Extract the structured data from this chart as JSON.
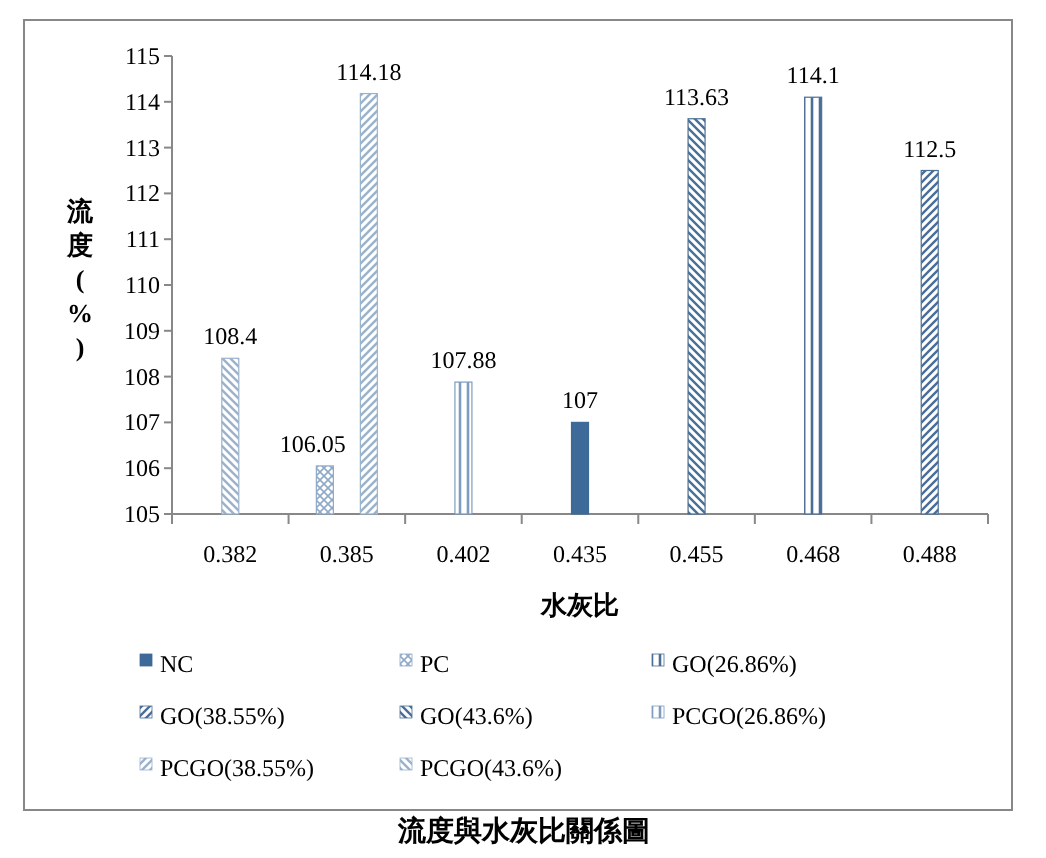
{
  "chart_data": {
    "type": "bar",
    "title": "流度與水灰比關係圖",
    "xlabel": "水灰比",
    "ylabel": "流度(%)",
    "categories": [
      "0.382",
      "0.385",
      "0.402",
      "0.435",
      "0.455",
      "0.468",
      "0.488"
    ],
    "ylim": [
      105,
      115
    ],
    "yticks": [
      105,
      106,
      107,
      108,
      109,
      110,
      111,
      112,
      113,
      114,
      115
    ],
    "data_labels": true,
    "legend": "bottom",
    "grid": false,
    "series": [
      {
        "name": "NC",
        "color": "#3e6a99",
        "values": [
          null,
          null,
          null,
          107,
          null,
          null,
          null
        ]
      },
      {
        "name": "PC",
        "color": "#8ea9c8",
        "values": [
          null,
          106.05,
          null,
          null,
          null,
          null,
          null
        ]
      },
      {
        "name": "GO(26.86%)",
        "color": "#4a6f96",
        "values": [
          null,
          null,
          null,
          null,
          null,
          114.1,
          null
        ]
      },
      {
        "name": "GO(38.55%)",
        "color": "#4a6f96",
        "values": [
          null,
          null,
          null,
          null,
          null,
          null,
          112.5
        ]
      },
      {
        "name": "GO(43.6%)",
        "color": "#4a6f96",
        "values": [
          null,
          null,
          null,
          null,
          113.63,
          null,
          null
        ]
      },
      {
        "name": "PCGO(26.86%)",
        "color": "#7f9cbd",
        "values": [
          null,
          null,
          107.88,
          null,
          null,
          null,
          null
        ]
      },
      {
        "name": "PCGO(38.55%)",
        "color": "#9ab2cc",
        "values": [
          null,
          114.18,
          null,
          null,
          null,
          null,
          null
        ]
      },
      {
        "name": "PCGO(43.6%)",
        "color": "#9ab2cc",
        "values": [
          108.4,
          null,
          null,
          null,
          null,
          null,
          null
        ]
      }
    ]
  }
}
